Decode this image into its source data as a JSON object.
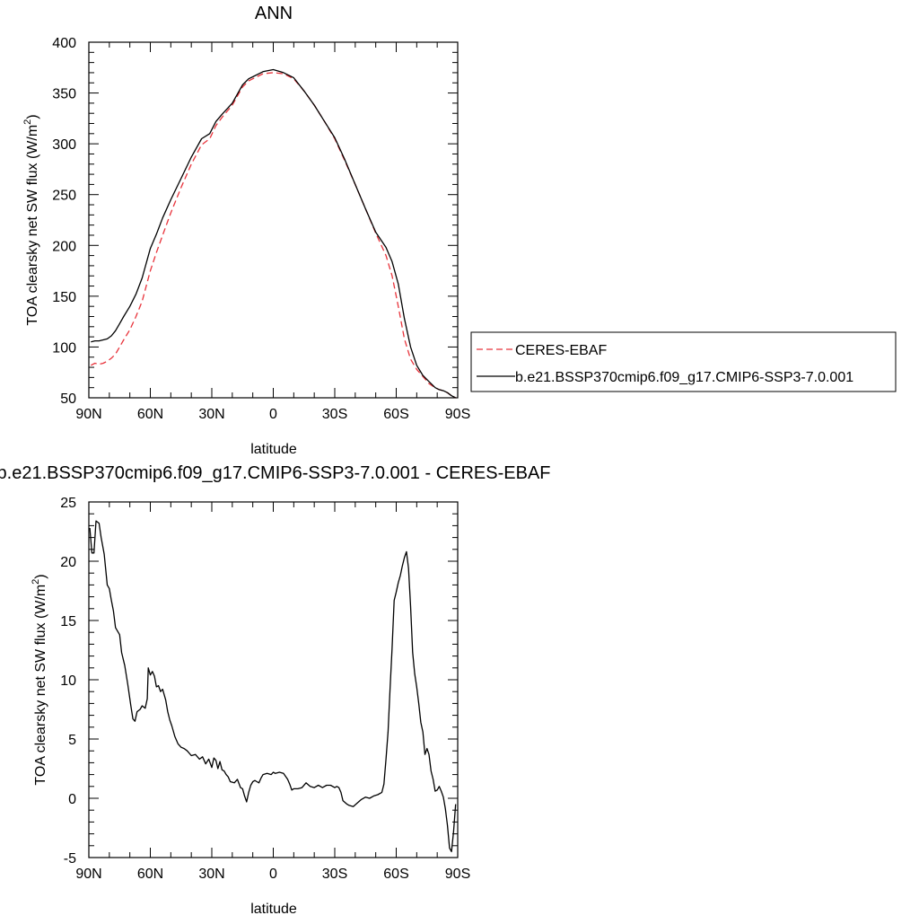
{
  "chart_data": [
    {
      "type": "line",
      "title": "ANN",
      "xlabel": "latitude",
      "ylabel": "TOA clearsky net SW flux (W/m",
      "ylabel_sup": "2",
      "ylabel_end": ")",
      "ylim": [
        50,
        400
      ],
      "xlim": [
        90,
        -90
      ],
      "x_ticks": [
        90,
        60,
        30,
        0,
        -30,
        -60,
        -90
      ],
      "x_tick_labels": [
        "90N",
        "60N",
        "30N",
        "0",
        "30S",
        "60S",
        "90S"
      ],
      "y_ticks": [
        50,
        100,
        150,
        200,
        250,
        300,
        350,
        400
      ],
      "y_tick_labels": [
        "50",
        "100",
        "150",
        "200",
        "250",
        "300",
        "350",
        "400"
      ],
      "grid": false,
      "legend_placement": "right",
      "series": [
        {
          "name": "CERES-EBAF",
          "color": "#e8333b",
          "dash": "dashed",
          "x": [
            89,
            87,
            85,
            83,
            81,
            79,
            77,
            75,
            73,
            70,
            67,
            64,
            60,
            57,
            54,
            50,
            45,
            40,
            35,
            31,
            28,
            25,
            20,
            15,
            12,
            10,
            5,
            0,
            -5,
            -10,
            -15,
            -20,
            -25,
            -30,
            -35,
            -40,
            -45,
            -50,
            -55,
            -58,
            -61,
            -64,
            -67,
            -70,
            -73,
            -76,
            -79,
            -81,
            -83,
            -85,
            -87,
            -89
          ],
          "y": [
            82,
            84,
            83,
            84,
            86,
            89,
            93,
            100,
            107,
            117,
            130,
            145,
            175,
            193,
            210,
            232,
            257,
            280,
            299,
            305,
            318,
            326,
            338,
            356,
            362,
            364,
            369,
            370,
            369,
            364,
            352,
            338,
            322,
            305,
            283,
            260,
            236,
            212,
            190,
            170,
            140,
            108,
            88,
            78,
            71,
            64,
            60,
            58,
            57,
            55,
            52,
            50
          ]
        },
        {
          "name": "b.e21.BSSP370cmip6.f09_g17.CMIP6-SSP3-7.0.001",
          "color": "#000000",
          "dash": "solid",
          "x": [
            89,
            87,
            85,
            83,
            81,
            79,
            77,
            75,
            73,
            70,
            67,
            64,
            60,
            57,
            54,
            50,
            45,
            40,
            35,
            31,
            28,
            25,
            20,
            15,
            12,
            10,
            5,
            0,
            -5,
            -10,
            -15,
            -20,
            -25,
            -30,
            -35,
            -40,
            -45,
            -50,
            -55,
            -58,
            -61,
            -64,
            -67,
            -70,
            -73,
            -76,
            -79,
            -81,
            -83,
            -85,
            -87,
            -89
          ],
          "y": [
            105,
            106,
            106,
            107,
            108,
            111,
            116,
            123,
            130,
            140,
            152,
            168,
            197,
            211,
            227,
            245,
            266,
            287,
            305,
            310,
            322,
            329,
            340,
            358,
            364,
            366,
            371,
            373,
            370,
            365,
            352,
            338,
            322,
            306,
            284,
            260,
            236,
            213,
            198,
            184,
            162,
            128,
            100,
            82,
            72,
            66,
            60,
            58,
            57,
            55,
            52,
            50
          ]
        }
      ]
    },
    {
      "type": "line",
      "title": "b.e21.BSSP370cmip6.f09_g17.CMIP6-SSP3-7.0.001 - CERES-EBAF",
      "xlabel": "latitude",
      "ylabel": "TOA clearsky net SW flux (W/m",
      "ylabel_sup": "2",
      "ylabel_end": ")",
      "ylim": [
        -5,
        25
      ],
      "xlim": [
        90,
        -90
      ],
      "x_ticks": [
        90,
        60,
        30,
        0,
        -30,
        -60,
        -90
      ],
      "x_tick_labels": [
        "90N",
        "60N",
        "30N",
        "0",
        "30S",
        "60S",
        "90S"
      ],
      "y_ticks": [
        -5,
        0,
        5,
        10,
        15,
        20,
        25
      ],
      "y_tick_labels": [
        "-5",
        "0",
        "5",
        "10",
        "15",
        "20",
        "25"
      ],
      "grid": false,
      "series": [
        {
          "color": "#000000",
          "dash": "solid",
          "x": [
            89.5,
            88.5,
            87.5,
            86.5,
            85,
            84,
            82.5,
            81,
            80,
            79,
            78,
            77,
            75,
            74,
            72.5,
            71,
            69.5,
            68.5,
            67.5,
            66.5,
            65,
            64,
            62.5,
            61.5,
            61,
            60,
            59,
            58,
            57,
            56,
            55,
            54,
            52.5,
            51.5,
            50.5,
            49.5,
            48,
            46.5,
            45,
            43.5,
            42,
            40,
            38,
            36,
            34.5,
            33,
            31.5,
            30,
            29,
            28,
            27,
            26,
            25,
            24,
            23,
            22,
            21,
            19,
            17.5,
            16,
            15,
            14,
            13,
            12,
            11,
            10,
            9,
            8,
            7,
            6,
            5,
            3,
            1,
            0,
            -1,
            -3,
            -5,
            -7,
            -8,
            -9,
            -10,
            -12,
            -14,
            -16,
            -18,
            -20,
            -22,
            -24,
            -26,
            -28,
            -30,
            -31,
            -32,
            -33,
            -34,
            -36,
            -37,
            -39,
            -41,
            -43,
            -45,
            -47,
            -49,
            -51,
            -53,
            -54,
            -55,
            -56,
            -57,
            -58,
            -59,
            -60,
            -61,
            -62,
            -63,
            -64,
            -65,
            -66,
            -67,
            -68,
            -69,
            -70,
            -71,
            -72,
            -73,
            -74,
            -75,
            -76,
            -77,
            -78,
            -79,
            -80,
            -81,
            -82,
            -83,
            -84,
            -85,
            -86,
            -87,
            -88,
            -89
          ],
          "y": [
            22.8,
            20.7,
            20.7,
            23.4,
            23.2,
            22,
            20.6,
            18,
            17.7,
            16.7,
            15.8,
            14.4,
            13.8,
            12.3,
            11.2,
            9.6,
            7.8,
            6.7,
            6.5,
            7.3,
            7.5,
            7.8,
            7.6,
            8.4,
            11,
            10.4,
            10.7,
            10.3,
            9.4,
            9.5,
            9,
            9.2,
            8.3,
            7.3,
            6.6,
            6.1,
            5.2,
            4.6,
            4.3,
            4.2,
            4,
            3.6,
            3.7,
            3.3,
            3.5,
            2.9,
            3.3,
            2.6,
            3.4,
            3.2,
            2.5,
            3.1,
            2.4,
            2.3,
            2.0,
            1.8,
            1.4,
            1.3,
            1.6,
            0.9,
            0.8,
            0.2,
            -0.3,
            0.5,
            1.1,
            1.4,
            1.5,
            1.4,
            1.3,
            1.7,
            2.0,
            2.1,
            2.0,
            2.2,
            2.1,
            2.2,
            2.1,
            1.6,
            1.2,
            0.7,
            0.8,
            0.8,
            0.9,
            1.3,
            1.0,
            0.9,
            1.1,
            0.9,
            1.1,
            1.1,
            0.9,
            1.0,
            0.9,
            0.5,
            -0.2,
            -0.5,
            -0.6,
            -0.7,
            -0.4,
            -0.1,
            0.1,
            0.0,
            0.2,
            0.3,
            0.5,
            1.2,
            3.3,
            5.6,
            9.2,
            12.7,
            16.7,
            17.4,
            18.2,
            18.8,
            19.6,
            20.3,
            20.8,
            19.4,
            16.2,
            12.3,
            10.5,
            9.4,
            8.0,
            6.4,
            5.6,
            3.7,
            4.2,
            3.7,
            2.3,
            1.6,
            0.6,
            0.7,
            1.0,
            0.6,
            0.1,
            -0.9,
            -2.3,
            -4.2,
            -4.5,
            -2.8,
            -0.5
          ]
        }
      ]
    }
  ]
}
